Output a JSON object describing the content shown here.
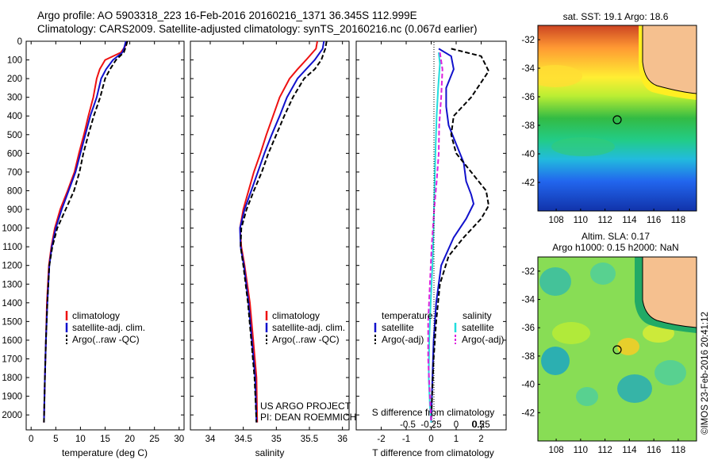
{
  "header": {
    "line1": "Argo profile: AO 5903318_223 16-Feb-2016 20160216_1371 36.345S 112.999E",
    "line2": "Climatology: CARS2009. Satellite-adjusted climatology: synTS_20160216.nc (0.067d earlier)"
  },
  "colors": {
    "clim": "#ee1111",
    "sat": "#1111cc",
    "argo": "#000000",
    "sal_sat": "#22dddd",
    "sal_argo": "#dd22dd",
    "land": "#f5c08f"
  },
  "chart_data": [
    {
      "type": "line",
      "xlabel": "temperature (deg C)",
      "ylabel": "",
      "xlim": [
        -1,
        31
      ],
      "ylim": [
        0,
        2080
      ],
      "y_reversed": true,
      "xticks": [
        0,
        5,
        10,
        15,
        20,
        25,
        30
      ],
      "yticks": [
        0,
        100,
        200,
        300,
        400,
        500,
        600,
        700,
        800,
        900,
        1000,
        1100,
        1200,
        1300,
        1400,
        1500,
        1600,
        1700,
        1800,
        1900,
        2000
      ],
      "legend": [
        "climatology",
        "satellite-adj. clim.",
        "Argo(..raw -QC)"
      ],
      "legend_position": "lower-right",
      "series": [
        {
          "name": "climatology",
          "x": [
            19.3,
            19.0,
            18.2,
            15.0,
            13.9,
            13.3,
            12.6,
            11.6,
            10.7,
            9.7,
            8.8,
            7.4,
            5.9,
            4.8,
            4.1,
            3.6,
            3.2,
            3.0,
            2.8,
            2.6
          ],
          "y": [
            0,
            30,
            60,
            100,
            150,
            200,
            300,
            400,
            500,
            600,
            700,
            800,
            900,
            1000,
            1100,
            1200,
            1400,
            1600,
            1800,
            2040
          ]
        },
        {
          "name": "satellite-adj. clim.",
          "x": [
            19.2,
            18.9,
            18.5,
            16.6,
            15.2,
            14.2,
            13.3,
            12.0,
            11.0,
            10.0,
            9.0,
            7.6,
            6.2,
            5.0,
            4.2,
            3.7,
            3.3,
            3.0,
            2.8,
            2.6
          ],
          "y": [
            0,
            30,
            60,
            100,
            150,
            200,
            300,
            400,
            500,
            600,
            700,
            800,
            900,
            1000,
            1100,
            1200,
            1400,
            1600,
            1800,
            2040
          ]
        },
        {
          "name": "Argo(..raw -QC)",
          "x": [
            19.5,
            19.2,
            18.8,
            17.2,
            16.0,
            15.0,
            14.0,
            12.7,
            11.6,
            10.6,
            9.8,
            8.7,
            7.0,
            5.3,
            4.3,
            3.7,
            3.3,
            3.0,
            2.8,
            2.6
          ],
          "y": [
            0,
            30,
            60,
            100,
            150,
            200,
            300,
            400,
            500,
            600,
            700,
            800,
            900,
            1000,
            1100,
            1200,
            1400,
            1600,
            1800,
            2040
          ]
        }
      ]
    },
    {
      "type": "line",
      "xlabel": "salinity",
      "xlim": [
        33.7,
        36.1
      ],
      "ylim": [
        0,
        2080
      ],
      "y_reversed": true,
      "xticks": [
        34,
        34.5,
        35,
        35.5,
        36
      ],
      "legend": [
        "climatology",
        "satellite-adj. clim.",
        "Argo(..raw -QC)"
      ],
      "legend_position": "lower-right",
      "annotation": [
        "US ARGO PROJECT",
        "PI: DEAN ROEMMICH"
      ],
      "series": [
        {
          "name": "climatology",
          "x": [
            35.62,
            35.6,
            35.45,
            35.32,
            35.2,
            35.05,
            34.95,
            34.85,
            34.76,
            34.66,
            34.58,
            34.5,
            34.45,
            34.47,
            34.52,
            34.6,
            34.65,
            34.7,
            34.71
          ],
          "y": [
            0,
            40,
            100,
            150,
            200,
            300,
            400,
            500,
            600,
            700,
            800,
            900,
            1000,
            1100,
            1200,
            1400,
            1600,
            1800,
            2040
          ]
        },
        {
          "name": "satellite-adj. clim.",
          "x": [
            35.72,
            35.7,
            35.58,
            35.45,
            35.32,
            35.16,
            35.05,
            34.93,
            34.82,
            34.72,
            34.62,
            34.52,
            34.45,
            34.46,
            34.51,
            34.58,
            34.63,
            34.68,
            34.7
          ],
          "y": [
            0,
            40,
            100,
            150,
            200,
            300,
            400,
            500,
            600,
            700,
            800,
            900,
            1000,
            1100,
            1200,
            1400,
            1600,
            1800,
            2040
          ]
        },
        {
          "name": "Argo(..raw -QC)",
          "x": [
            35.76,
            35.74,
            35.68,
            35.58,
            35.42,
            35.25,
            35.12,
            35.0,
            34.88,
            34.78,
            34.66,
            34.55,
            34.47,
            34.46,
            34.5,
            34.57,
            34.62,
            34.67,
            34.7
          ],
          "y": [
            0,
            40,
            100,
            150,
            200,
            300,
            400,
            500,
            600,
            700,
            800,
            900,
            1000,
            1100,
            1200,
            1400,
            1600,
            1800,
            2040
          ]
        }
      ]
    },
    {
      "type": "line",
      "xlabel": "T difference from climatology",
      "xlabel_top": "S difference from climatology",
      "xlim": [
        -3,
        3
      ],
      "ylim": [
        0,
        2080
      ],
      "y_reversed": true,
      "xticks": [
        -2,
        -1,
        0,
        1,
        2
      ],
      "xticklabels_T": [
        "-2",
        "-1",
        "0",
        "1",
        "2"
      ],
      "xticklabels_S": [
        "-0.5",
        "-0.25",
        "0",
        "0.25",
        "0.5"
      ],
      "legend_titles": [
        "temperature",
        "salinity"
      ],
      "legend": [
        "satellite",
        "Argo(-adj)",
        "satellite",
        "Argo(-adj)"
      ],
      "series": [
        {
          "name": "satellite",
          "x": [
            0.3,
            0.8,
            0.9,
            0.6,
            0.6,
            0.7,
            1.0,
            1.3,
            1.4,
            1.6,
            1.7,
            1.4,
            0.9,
            0.4,
            0.2,
            0.1,
            0.05,
            0.0
          ],
          "y": [
            40,
            80,
            150,
            250,
            350,
            450,
            550,
            650,
            750,
            820,
            870,
            950,
            1050,
            1200,
            1400,
            1600,
            1800,
            2040
          ]
        },
        {
          "name": "Argo(-adj)",
          "x": [
            0.8,
            2.0,
            2.3,
            1.6,
            0.9,
            0.8,
            1.0,
            1.6,
            2.2,
            2.3,
            2.0,
            1.3,
            0.7,
            0.35,
            0.2,
            0.1,
            0.05,
            0.0
          ],
          "y": [
            40,
            80,
            160,
            300,
            400,
            500,
            600,
            700,
            800,
            880,
            950,
            1050,
            1150,
            1300,
            1500,
            1700,
            1850,
            2040
          ]
        },
        {
          "name": "satellite",
          "x": [
            0.3,
            0.35,
            0.28,
            0.22,
            0.18,
            0.15,
            0.12,
            0.1,
            0.05,
            -0.02,
            -0.08,
            -0.1,
            -0.05,
            0.0
          ],
          "y": [
            60,
            120,
            250,
            400,
            550,
            700,
            850,
            1000,
            1200,
            1400,
            1600,
            1800,
            1950,
            2040
          ]
        },
        {
          "name": "Argo(-adj)",
          "x": [
            0.35,
            0.45,
            0.4,
            0.32,
            0.3,
            0.22,
            0.12,
            0.02,
            -0.05,
            -0.12,
            -0.12,
            -0.05,
            0.0
          ],
          "y": [
            60,
            150,
            300,
            450,
            600,
            750,
            900,
            1100,
            1300,
            1500,
            1700,
            1900,
            2040
          ]
        }
      ]
    }
  ],
  "maps": {
    "sst": {
      "title": "sat. SST: 19.1  Argo: 18.6",
      "xticks": [
        108,
        110,
        112,
        114,
        116,
        118
      ],
      "yticks": [
        -32,
        -34,
        -36,
        -38,
        -40,
        -42
      ]
    },
    "sla": {
      "title_line1": "Altim. SLA: 0.17",
      "title_line2": "Argo h1000: 0.15 h2000: NaN",
      "xticks": [
        108,
        110,
        112,
        114,
        116,
        118
      ],
      "yticks": [
        -32,
        -34,
        -36,
        -38,
        -40,
        -42
      ]
    }
  },
  "footer_vertical": "©IMOS 23-Feb-2016 20:41:12"
}
